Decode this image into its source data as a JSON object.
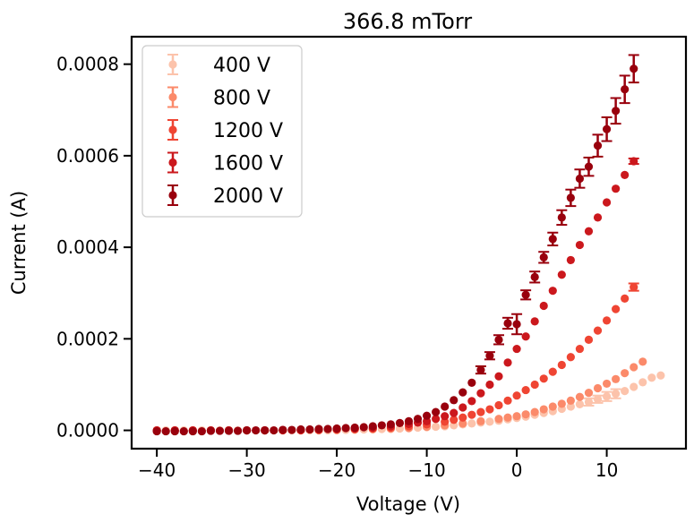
{
  "chart_data": {
    "type": "scatter",
    "title": "366.8 mTorr",
    "xlabel": "Voltage (V)",
    "ylabel": "Current (A)",
    "xlim": [
      -42.8,
      18.8
    ],
    "ylim": [
      -4e-05,
      0.00086
    ],
    "xticks": [
      -40,
      -30,
      -20,
      -10,
      0,
      10
    ],
    "xtick_labels": [
      "−40",
      "−30",
      "−20",
      "−10",
      "0",
      "10"
    ],
    "yticks": [
      0,
      0.0002,
      0.0004,
      0.0006,
      0.0008
    ],
    "ytick_labels": [
      "0.0000",
      "0.0002",
      "0.0004",
      "0.0006",
      "0.0008"
    ],
    "grid": false,
    "legend_position": "top-left",
    "error_bars": true,
    "series": [
      {
        "name": "400 V",
        "color": "#fcc3ab",
        "points": [
          [
            -40,
            0.0,
            0
          ],
          [
            -39,
            0.0,
            0
          ],
          [
            -38,
            0.0,
            0
          ],
          [
            -37,
            0.0,
            0
          ],
          [
            -36,
            0.0,
            0
          ],
          [
            -35,
            0.0,
            0
          ],
          [
            -34,
            0.0,
            0
          ],
          [
            -33,
            0.0,
            0
          ],
          [
            -32,
            0.0,
            0
          ],
          [
            -31,
            0.0,
            0
          ],
          [
            -30,
            0.0,
            0
          ],
          [
            -29,
            0.0,
            0
          ],
          [
            -28,
            0.0,
            0
          ],
          [
            -27,
            0.0,
            0
          ],
          [
            -26,
            0.0,
            0
          ],
          [
            -25,
            0.0,
            0
          ],
          [
            -24,
            0.0,
            0
          ],
          [
            -23,
            0.0,
            0
          ],
          [
            -22,
            0.0,
            0
          ],
          [
            -21,
            0.0,
            0
          ],
          [
            -20,
            0.0,
            0
          ],
          [
            -19,
            1e-06,
            0
          ],
          [
            -18,
            1e-06,
            0
          ],
          [
            -17,
            2e-06,
            0
          ],
          [
            -16,
            2e-06,
            0
          ],
          [
            -15,
            3e-06,
            0
          ],
          [
            -14,
            3e-06,
            0
          ],
          [
            -13,
            4e-06,
            0
          ],
          [
            -12,
            5e-06,
            0
          ],
          [
            -11,
            6e-06,
            0
          ],
          [
            -10,
            7e-06,
            0
          ],
          [
            -9,
            8e-06,
            0
          ],
          [
            -8,
            9e-06,
            0
          ],
          [
            -7,
            1.1e-05,
            0
          ],
          [
            -6,
            1.3e-05,
            0
          ],
          [
            -5,
            1.5e-05,
            0
          ],
          [
            -4,
            1.7e-05,
            0
          ],
          [
            -3,
            1.9e-05,
            0
          ],
          [
            -2,
            2.1e-05,
            0
          ],
          [
            -1,
            2.4e-05,
            0
          ],
          [
            0,
            2.7e-05,
            0
          ],
          [
            1,
            3e-05,
            0
          ],
          [
            2,
            3.4e-05,
            0
          ],
          [
            3,
            3.8e-05,
            0
          ],
          [
            4,
            4.2e-05,
            0
          ],
          [
            5,
            4.7e-05,
            0
          ],
          [
            6,
            5.2e-05,
            0
          ],
          [
            7,
            5.7e-05,
            0
          ],
          [
            8,
            6.2e-05,
            8e-06
          ],
          [
            9,
            6.8e-05,
            8e-06
          ],
          [
            10,
            7.4e-05,
            1e-05
          ],
          [
            11,
            8e-05,
            1e-05
          ],
          [
            12,
            8.6e-05,
            0
          ],
          [
            13,
            9.5e-05,
            0
          ],
          [
            14,
            0.000105,
            0
          ],
          [
            15,
            0.000115,
            0
          ],
          [
            16,
            0.00012,
            0
          ]
        ]
      },
      {
        "name": "800 V",
        "color": "#fb8a6a",
        "points": [
          [
            -40,
            0.0,
            0
          ],
          [
            -38,
            0.0,
            0
          ],
          [
            -36,
            0.0,
            0
          ],
          [
            -34,
            0.0,
            0
          ],
          [
            -32,
            0.0,
            0
          ],
          [
            -30,
            0.0,
            0
          ],
          [
            -28,
            0.0,
            0
          ],
          [
            -26,
            0.0,
            0
          ],
          [
            -24,
            0.0,
            0
          ],
          [
            -22,
            0.0,
            0
          ],
          [
            -20,
            1e-06,
            0
          ],
          [
            -18,
            2e-06,
            0
          ],
          [
            -16,
            3e-06,
            0
          ],
          [
            -14,
            4e-06,
            0
          ],
          [
            -12,
            5e-06,
            0
          ],
          [
            -10,
            8e-06,
            0
          ],
          [
            -8,
            1.1e-05,
            0
          ],
          [
            -6,
            1.5e-05,
            0
          ],
          [
            -4,
            2e-05,
            0
          ],
          [
            -2,
            2.5e-05,
            0
          ],
          [
            -1,
            2.8e-05,
            0
          ],
          [
            0,
            3.1e-05,
            0
          ],
          [
            1,
            3.5e-05,
            0
          ],
          [
            2,
            4e-05,
            0
          ],
          [
            3,
            4.6e-05,
            0
          ],
          [
            4,
            5.2e-05,
            0
          ],
          [
            5,
            5.8e-05,
            0
          ],
          [
            6,
            6.5e-05,
            0
          ],
          [
            7,
            7.3e-05,
            0
          ],
          [
            8,
            8.2e-05,
            0
          ],
          [
            9,
            9.2e-05,
            0
          ],
          [
            10,
            0.000102,
            0
          ],
          [
            11,
            0.000112,
            0
          ],
          [
            12,
            0.000125,
            0
          ],
          [
            13,
            0.000138,
            0
          ],
          [
            14,
            0.00015,
            0
          ]
        ]
      },
      {
        "name": "1200 V",
        "color": "#ef4533",
        "points": [
          [
            -40,
            0.0,
            0
          ],
          [
            -38,
            0.0,
            0
          ],
          [
            -36,
            0.0,
            0
          ],
          [
            -34,
            0.0,
            0
          ],
          [
            -32,
            0.0,
            0
          ],
          [
            -30,
            0.0,
            0
          ],
          [
            -28,
            0.0,
            0
          ],
          [
            -26,
            0.0,
            0
          ],
          [
            -24,
            0.0,
            0
          ],
          [
            -22,
            1e-06,
            0
          ],
          [
            -20,
            2e-06,
            0
          ],
          [
            -18,
            3e-06,
            0
          ],
          [
            -16,
            4e-06,
            0
          ],
          [
            -14,
            6e-06,
            0
          ],
          [
            -12,
            9e-06,
            0
          ],
          [
            -10,
            1.3e-05,
            0
          ],
          [
            -8,
            1.9e-05,
            0
          ],
          [
            -7,
            2.3e-05,
            0
          ],
          [
            -6,
            2.8e-05,
            0
          ],
          [
            -5,
            3.4e-05,
            0
          ],
          [
            -4,
            4e-05,
            0
          ],
          [
            -3,
            4.6e-05,
            0
          ],
          [
            -2,
            5.5e-05,
            0
          ],
          [
            -1,
            6.5e-05,
            0
          ],
          [
            0,
            7.6e-05,
            0
          ],
          [
            1,
            8.8e-05,
            0
          ],
          [
            2,
            0.0001,
            0
          ],
          [
            3,
            0.000113,
            0
          ],
          [
            4,
            0.000128,
            0
          ],
          [
            5,
            0.000143,
            0
          ],
          [
            6,
            0.00016,
            0
          ],
          [
            7,
            0.000178,
            0
          ],
          [
            8,
            0.000198,
            0
          ],
          [
            9,
            0.000218,
            0
          ],
          [
            10,
            0.00024,
            0
          ],
          [
            11,
            0.000265,
            0
          ],
          [
            12,
            0.000288,
            0
          ],
          [
            13,
            0.000313,
            8e-06
          ]
        ]
      },
      {
        "name": "1600 V",
        "color": "#cb181d",
        "points": [
          [
            -40,
            0.0,
            0
          ],
          [
            -38,
            0.0,
            0
          ],
          [
            -36,
            0.0,
            0
          ],
          [
            -34,
            0.0,
            0
          ],
          [
            -32,
            0.0,
            0
          ],
          [
            -30,
            0.0,
            0
          ],
          [
            -28,
            0.0,
            0
          ],
          [
            -26,
            1e-06,
            0
          ],
          [
            -24,
            1e-06,
            0
          ],
          [
            -22,
            2e-06,
            0
          ],
          [
            -20,
            3e-06,
            0
          ],
          [
            -18,
            4e-06,
            0
          ],
          [
            -16,
            6e-06,
            0
          ],
          [
            -14,
            9e-06,
            0
          ],
          [
            -12,
            1.4e-05,
            0
          ],
          [
            -11,
            1.7e-05,
            0
          ],
          [
            -10,
            2e-05,
            0
          ],
          [
            -9,
            2.5e-05,
            0
          ],
          [
            -8,
            3.1e-05,
            0
          ],
          [
            -7,
            3.8e-05,
            0
          ],
          [
            -6,
            5e-05,
            0
          ],
          [
            -5,
            6.4e-05,
            0
          ],
          [
            -4,
            8.1e-05,
            0
          ],
          [
            -3,
            0.0001,
            0
          ],
          [
            -2,
            0.000118,
            0
          ],
          [
            -1,
            0.000148,
            0
          ],
          [
            0,
            0.000178,
            0
          ],
          [
            1,
            0.000205,
            0
          ],
          [
            2,
            0.000238,
            0
          ],
          [
            3,
            0.000272,
            0
          ],
          [
            4,
            0.000305,
            0
          ],
          [
            5,
            0.00034,
            0
          ],
          [
            6,
            0.000372,
            0
          ],
          [
            7,
            0.000405,
            0
          ],
          [
            8,
            0.000435,
            0
          ],
          [
            9,
            0.000465,
            0
          ],
          [
            10,
            0.000498,
            0
          ],
          [
            11,
            0.000528,
            0
          ],
          [
            12,
            0.000558,
            0
          ],
          [
            13,
            0.000588,
            6e-06
          ]
        ]
      },
      {
        "name": "2000 V",
        "color": "#99000d",
        "points": [
          [
            -40,
            -2e-06,
            0
          ],
          [
            -39,
            -2e-06,
            0
          ],
          [
            -38,
            -2e-06,
            0
          ],
          [
            -37,
            -2e-06,
            0
          ],
          [
            -36,
            -2e-06,
            0
          ],
          [
            -35,
            -2e-06,
            0
          ],
          [
            -34,
            -1e-06,
            0
          ],
          [
            -33,
            -1e-06,
            0
          ],
          [
            -32,
            -1e-06,
            0
          ],
          [
            -31,
            -1e-06,
            0
          ],
          [
            -30,
            0.0,
            0
          ],
          [
            -29,
            0.0,
            0
          ],
          [
            -28,
            0.0,
            0
          ],
          [
            -27,
            0.0,
            0
          ],
          [
            -26,
            1e-06,
            0
          ],
          [
            -25,
            1e-06,
            0
          ],
          [
            -24,
            2e-06,
            0
          ],
          [
            -23,
            2e-06,
            0
          ],
          [
            -22,
            3e-06,
            0
          ],
          [
            -21,
            3e-06,
            0
          ],
          [
            -20,
            4e-06,
            0
          ],
          [
            -19,
            5e-06,
            0
          ],
          [
            -18,
            6e-06,
            0
          ],
          [
            -17,
            7e-06,
            0
          ],
          [
            -16,
            9e-06,
            0
          ],
          [
            -15,
            1.1e-05,
            0
          ],
          [
            -14,
            1.3e-05,
            0
          ],
          [
            -13,
            1.6e-05,
            0
          ],
          [
            -12,
            2e-05,
            0
          ],
          [
            -11,
            2.5e-05,
            0
          ],
          [
            -10,
            3.2e-05,
            0
          ],
          [
            -9,
            4e-05,
            0
          ],
          [
            -8,
            5.2e-05,
            0
          ],
          [
            -7,
            6.6e-05,
            0
          ],
          [
            -6,
            8.3e-05,
            0
          ],
          [
            -5,
            0.000104,
            0
          ],
          [
            -4,
            0.000132,
            8e-06
          ],
          [
            -3,
            0.000163,
            8e-06
          ],
          [
            -2,
            0.000198,
            1e-05
          ],
          [
            -1,
            0.000234,
            1.2e-05
          ],
          [
            0,
            0.000232,
            2.2e-05
          ],
          [
            1,
            0.000296,
            1e-05
          ],
          [
            2,
            0.000335,
            1.2e-05
          ],
          [
            3,
            0.000378,
            1.2e-05
          ],
          [
            4,
            0.000418,
            1.4e-05
          ],
          [
            5,
            0.000465,
            1.6e-05
          ],
          [
            6,
            0.000508,
            1.8e-05
          ],
          [
            7,
            0.00055,
            2e-05
          ],
          [
            8,
            0.000576,
            2e-05
          ],
          [
            9,
            0.000622,
            2.4e-05
          ],
          [
            10,
            0.000658,
            2.6e-05
          ],
          [
            11,
            0.000698,
            2.8e-05
          ],
          [
            12,
            0.000745,
            3e-05
          ],
          [
            13,
            0.00079,
            3e-05
          ]
        ]
      }
    ]
  }
}
